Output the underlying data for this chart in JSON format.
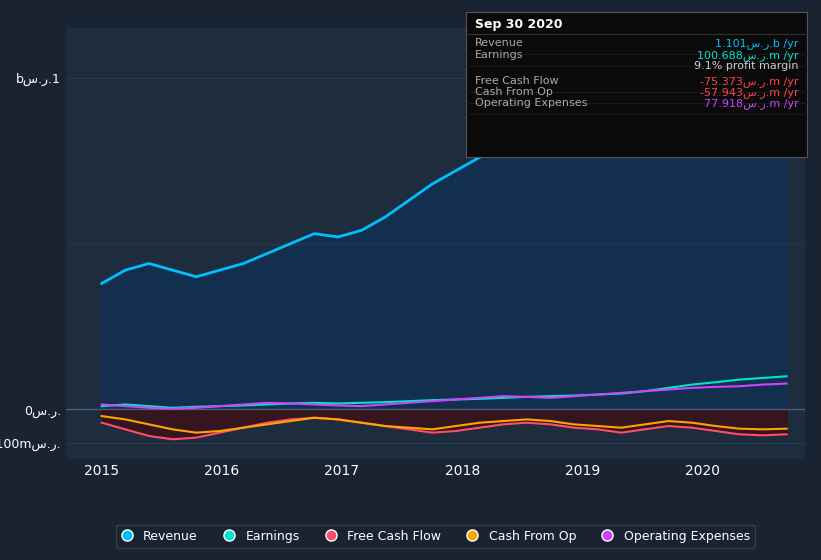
{
  "title": "Sep 30 2020",
  "bg_color": "#1a2332",
  "plot_bg_color": "#1e2d3d",
  "grid_color": "#2a3f55",
  "ylabel_top": "bس.ر.1",
  "ylabel_mid": "0س.ر.",
  "ylabel_bot": "-100mس.ر.",
  "xlabels": [
    "2015",
    "2016",
    "2017",
    "2018",
    "2019",
    "2020"
  ],
  "legend": [
    {
      "label": "Revenue",
      "color": "#00bfff"
    },
    {
      "label": "Earnings",
      "color": "#00e5cc"
    },
    {
      "label": "Free Cash Flow",
      "color": "#ff4d6d"
    },
    {
      "label": "Cash From Op",
      "color": "#ffa500"
    },
    {
      "label": "Operating Expenses",
      "color": "#cc44ff"
    }
  ],
  "info_title": "Sep 30 2020",
  "info_rows": [
    {
      "label": "Revenue",
      "value": "1.101س.ر.b /yr",
      "value_color": "#00bfff"
    },
    {
      "label": "Earnings",
      "value": "100.688س.ر.m /yr",
      "value_color": "#00e5cc"
    },
    {
      "label": "",
      "value": "9.1% profit margin",
      "value_color": "#cccccc"
    },
    {
      "label": "Free Cash Flow",
      "value": "-75.373س.ر.m /yr",
      "value_color": "#ff4444"
    },
    {
      "label": "Cash From Op",
      "value": "-57.943س.ر.m /yr",
      "value_color": "#ff4444"
    },
    {
      "label": "Operating Expenses",
      "value": "77.918س.ر.m /yr",
      "value_color": "#cc44ff"
    }
  ],
  "revenue": [
    0.38,
    0.42,
    0.44,
    0.42,
    0.4,
    0.42,
    0.44,
    0.47,
    0.5,
    0.53,
    0.52,
    0.54,
    0.58,
    0.63,
    0.68,
    0.72,
    0.76,
    0.78,
    0.8,
    0.82,
    0.84,
    0.86,
    0.88,
    0.92,
    0.96,
    1.0,
    1.05,
    1.08,
    1.1,
    1.101
  ],
  "earnings": [
    0.01,
    0.015,
    0.01,
    0.005,
    0.008,
    0.01,
    0.012,
    0.015,
    0.018,
    0.02,
    0.018,
    0.02,
    0.022,
    0.025,
    0.028,
    0.03,
    0.032,
    0.035,
    0.038,
    0.04,
    0.042,
    0.045,
    0.048,
    0.055,
    0.065,
    0.075,
    0.082,
    0.09,
    0.095,
    0.1
  ],
  "free_cash_flow": [
    -0.04,
    -0.06,
    -0.08,
    -0.09,
    -0.085,
    -0.07,
    -0.055,
    -0.04,
    -0.03,
    -0.025,
    -0.03,
    -0.04,
    -0.05,
    -0.06,
    -0.07,
    -0.065,
    -0.055,
    -0.045,
    -0.04,
    -0.045,
    -0.055,
    -0.06,
    -0.07,
    -0.06,
    -0.05,
    -0.055,
    -0.065,
    -0.075,
    -0.078,
    -0.075
  ],
  "cash_from_op": [
    -0.02,
    -0.03,
    -0.045,
    -0.06,
    -0.07,
    -0.065,
    -0.055,
    -0.045,
    -0.035,
    -0.025,
    -0.03,
    -0.04,
    -0.05,
    -0.055,
    -0.06,
    -0.05,
    -0.04,
    -0.035,
    -0.03,
    -0.035,
    -0.045,
    -0.05,
    -0.055,
    -0.045,
    -0.035,
    -0.04,
    -0.05,
    -0.058,
    -0.06,
    -0.058
  ],
  "op_expenses": [
    0.015,
    0.01,
    0.005,
    0.002,
    0.005,
    0.01,
    0.015,
    0.02,
    0.018,
    0.015,
    0.012,
    0.01,
    0.015,
    0.02,
    0.025,
    0.03,
    0.035,
    0.04,
    0.038,
    0.035,
    0.04,
    0.045,
    0.05,
    0.055,
    0.06,
    0.065,
    0.068,
    0.07,
    0.075,
    0.078
  ]
}
